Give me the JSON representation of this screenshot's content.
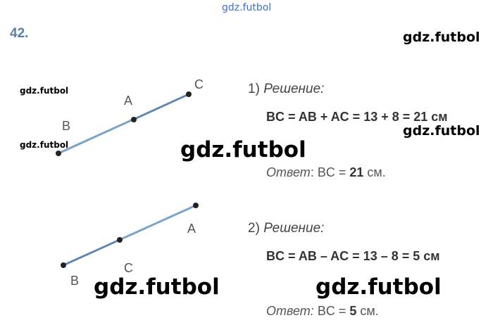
{
  "watermark": "gdz.futbol",
  "exercise_number": "42.",
  "figures": [
    {
      "points": [
        {
          "label": "B"
        },
        {
          "label": "A"
        },
        {
          "label": "C"
        }
      ]
    },
    {
      "points": [
        {
          "label": "B"
        },
        {
          "label": "C"
        },
        {
          "label": "A"
        }
      ]
    }
  ],
  "solutions": [
    {
      "number": "1)",
      "heading": "Решение:",
      "equation": "BC = AB + AC = 13 + 8 = 21 см",
      "answer_label": "Ответ",
      "answer_prefix": ": BC =",
      "answer_value": "21",
      "answer_unit": "см."
    },
    {
      "number": "2)",
      "heading": "Решение:",
      "equation": "BC = AB – AC = 13 – 8 = 5 см",
      "answer_label": "Ответ:",
      "answer_prefix": "BC =",
      "answer_value": "5",
      "answer_unit": "см."
    }
  ]
}
